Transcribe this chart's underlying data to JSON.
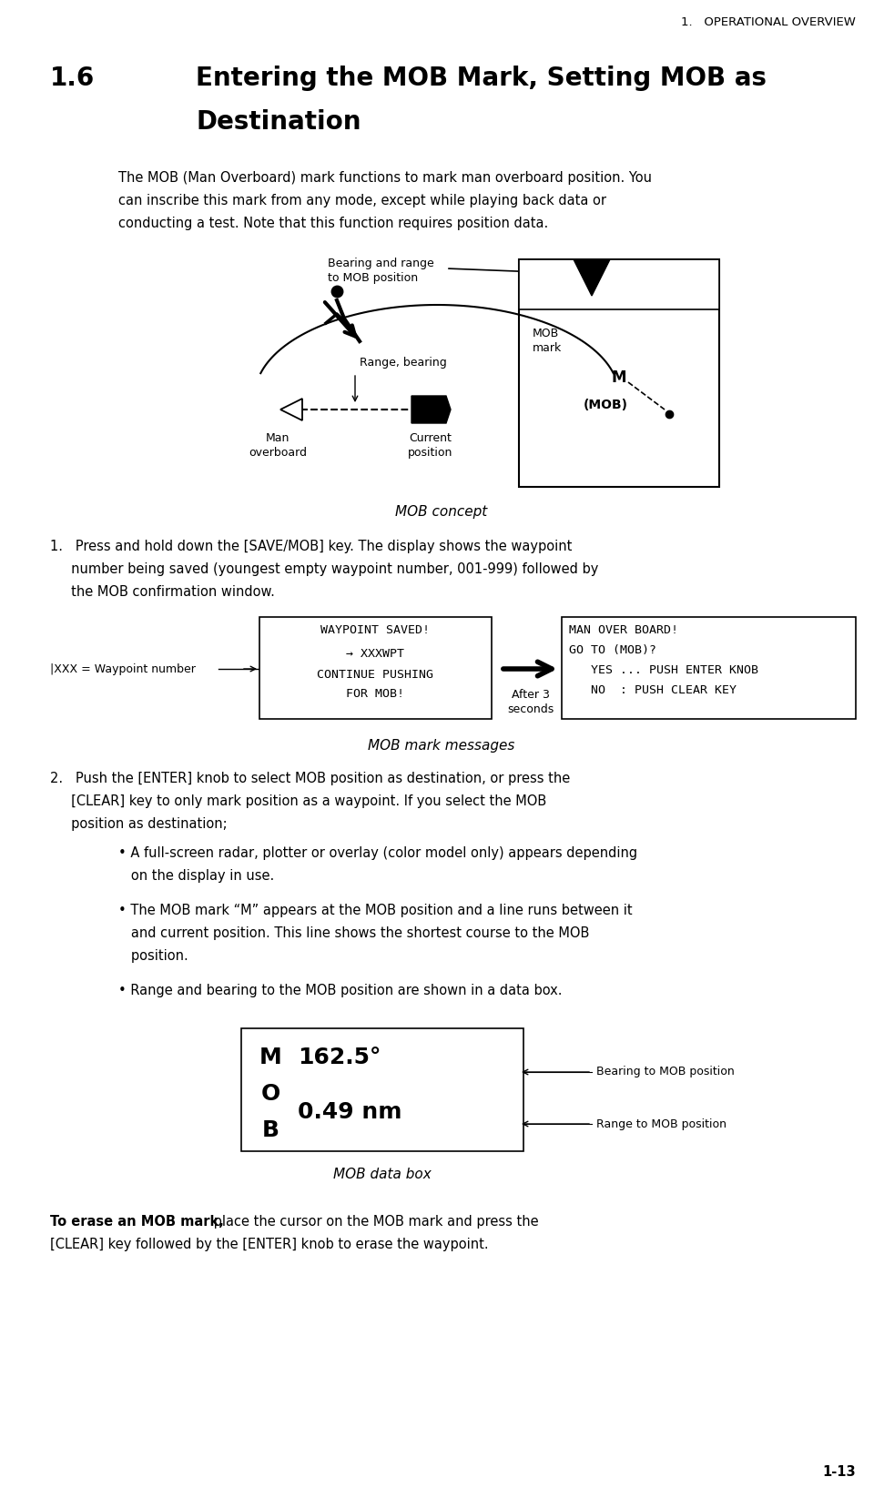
{
  "page_header": "1.   OPERATIONAL OVERVIEW",
  "section_num": "1.6",
  "section_title_line1": "Entering the MOB Mark, Setting MOB as",
  "section_title_line2": "Destination",
  "intro_line1": "The MOB (Man Overboard) mark functions to mark man overboard position. You",
  "intro_line2": "can inscribe this mark from any mode, except while playing back data or",
  "intro_line3": "conducting a test. Note that this function requires position data.",
  "bearing_range_label": "Bearing and range\nto MOB position",
  "mob_mark_label": "MOB\nmark",
  "range_bearing_label": "Range, bearing",
  "man_overboard_label": "Man\noverboard",
  "current_position_label": "Current\nposition",
  "mob_concept_caption": "MOB concept",
  "step1_line1": "1.   Press and hold down the [SAVE/MOB] key. The display shows the waypoint",
  "step1_line2": "     number being saved (youngest empty waypoint number, 001-999) followed by",
  "step1_line3": "     the MOB confirmation window.",
  "wp_box_line1": "WAYPOINT SAVED!",
  "wp_box_line2": "   → XXXWPT",
  "wp_box_line3": "CONTINUE PUSHING",
  "wp_box_line4": "     FOR MOB!",
  "xxx_label": "|XXX = Waypoint number",
  "after_label": "After 3\nseconds",
  "mob_box_line1": "MAN OVER BOARD!",
  "mob_box_line2": "GO TO (MOB)?",
  "mob_box_line3": "   YES ... PUSH ENTER KNOB",
  "mob_box_line4": "   NO  : PUSH CLEAR KEY",
  "mob_messages_caption": "MOB mark messages",
  "step2_line1": "2.   Push the [ENTER] knob to select MOB position as destination, or press the",
  "step2_line2": "     [CLEAR] key to only mark position as a waypoint. If you select the MOB",
  "step2_line3": "     position as destination;",
  "bullet1_line1": "• A full-screen radar, plotter or overlay (color model only) appears depending",
  "bullet1_line2": "   on the display in use.",
  "bullet2_line1": "• The MOB mark “M” appears at the MOB position and a line runs between it",
  "bullet2_line2": "   and current position. This line shows the shortest course to the MOB",
  "bullet2_line3": "   position.",
  "bullet3_line1": "• Range and bearing to the MOB position are shown in a data box.",
  "mob_data_M": "M",
  "mob_data_O": "O",
  "mob_data_B": "B",
  "mob_data_line1": "162.5°",
  "mob_data_line2": "0.49 nm",
  "mob_data_label1": "Bearing to MOB position",
  "mob_data_label2": "Range to MOB position",
  "mob_data_caption": "MOB data box",
  "erase_bold": "To erase an MOB mark,",
  "erase_normal_line1": " place the cursor on the MOB mark and press the",
  "erase_normal_line2": "[CLEAR] key followed by the [ENTER] knob to erase the waypoint.",
  "page_number": "1-13",
  "bg_color": "#ffffff",
  "text_color": "#000000",
  "font_body": 10.5,
  "font_header": 9.5,
  "font_section": 20,
  "font_caption": 11,
  "font_mono": 9.5
}
